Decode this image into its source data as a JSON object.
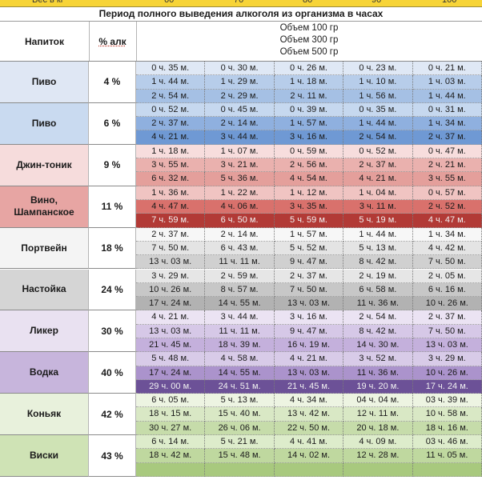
{
  "top_strip_values": [
    "Вес в кг",
    "60",
    "70",
    "80",
    "90",
    "100"
  ],
  "title": "Период полного выведения алкоголя из организма в часах",
  "headers": {
    "drink": "Напиток",
    "alc": "% алк"
  },
  "volumes": [
    "Объем 100 гр",
    "Объем 300 гр",
    "Объем 500 гр"
  ],
  "groups": [
    {
      "drink": "Пиво",
      "alc": "4 %",
      "drink_bg": "#dfe7f4",
      "row_bg": [
        "#dfe8f5",
        "#b7cdea",
        "#a5c0e4"
      ],
      "rows": [
        [
          "0 ч. 35 м.",
          "0 ч. 30 м.",
          "0 ч. 26 м.",
          "0 ч. 23 м.",
          "0 ч. 21 м."
        ],
        [
          "1 ч. 44 м.",
          "1 ч. 29 м.",
          "1 ч. 18 м.",
          "1 ч. 10 м.",
          "1 ч. 03 м."
        ],
        [
          "2 ч. 54 м.",
          "2 ч. 29 м.",
          "2 ч. 11 м.",
          "1 ч. 56 м.",
          "1 ч. 44 м."
        ]
      ]
    },
    {
      "drink": "Пиво",
      "alc": "6 %",
      "drink_bg": "#c9daf0",
      "row_bg": [
        "#c6d8ef",
        "#8fb0df",
        "#6f99d4"
      ],
      "rows": [
        [
          "0 ч. 52 м.",
          "0 ч. 45 м.",
          "0 ч. 39 м.",
          "0 ч. 35 м.",
          "0 ч. 31 м."
        ],
        [
          "2 ч. 37 м.",
          "2 ч. 14 м.",
          "1 ч. 57 м.",
          "1 ч. 44 м.",
          "1 ч. 34 м."
        ],
        [
          "4 ч. 21 м.",
          "3 ч. 44 м.",
          "3 ч. 16 м.",
          "2 ч. 54 м.",
          "2 ч. 37 м."
        ]
      ]
    },
    {
      "drink": "Джин-тоник",
      "alc": "9 %",
      "drink_bg": "#f6dcdc",
      "row_bg": [
        "#f7dddd",
        "#eab1ae",
        "#e49f9b"
      ],
      "rows": [
        [
          "1 ч. 18 м.",
          "1 ч. 07 м.",
          "0 ч. 59 м.",
          "0 ч. 52 м.",
          "0 ч. 47 м."
        ],
        [
          "3 ч. 55 м.",
          "3 ч. 21 м.",
          "2 ч. 56 м.",
          "2 ч. 37 м.",
          "2 ч. 21 м."
        ],
        [
          "6 ч. 32 м.",
          "5 ч. 36 м.",
          "4 ч. 54 м.",
          "4 ч. 21 м.",
          "3 ч. 55 м."
        ]
      ]
    },
    {
      "drink": "Вино, Шампанское",
      "alc": "11 %",
      "drink_bg": "#e7a5a3",
      "row_bg": [
        "#f0c4c2",
        "#d9716c",
        "#b23a36"
      ],
      "dark_rows": [
        2
      ],
      "rows": [
        [
          "1 ч. 36 м.",
          "1 ч. 22 м.",
          "1 ч. 12 м.",
          "1 ч. 04 м.",
          "0 ч. 57 м."
        ],
        [
          "4 ч. 47 м.",
          "4 ч. 06 м.",
          "3 ч. 35 м.",
          "3 ч. 11 м.",
          "2 ч. 52 м."
        ],
        [
          "7 ч. 59 м.",
          "6 ч. 50 м.",
          "5 ч. 59 м.",
          "5 ч. 19 м.",
          "4 ч. 47 м."
        ]
      ]
    },
    {
      "drink": "Портвейн",
      "alc": "18 %",
      "drink_bg": "#f4f4f4",
      "row_bg": [
        "#f7f7f7",
        "#e4e4e4",
        "#d0d0d0"
      ],
      "rows": [
        [
          "2 ч. 37 м.",
          "2 ч. 14 м.",
          "1 ч. 57 м.",
          "1 ч. 44 м.",
          "1 ч. 34 м."
        ],
        [
          "7 ч. 50 м.",
          "6 ч. 43 м.",
          "5 ч. 52 м.",
          "5 ч. 13 м.",
          "4 ч. 42 м."
        ],
        [
          "13 ч. 03 м.",
          "11 ч. 11 м.",
          "9 ч. 47 м.",
          "8 ч. 42 м.",
          "7 ч. 50 м."
        ]
      ]
    },
    {
      "drink": "Настойка",
      "alc": "24 %",
      "drink_bg": "#d5d5d5",
      "row_bg": [
        "#e6e6e6",
        "#c7c7c7",
        "#b2b2b2"
      ],
      "rows": [
        [
          "3 ч. 29 м.",
          "2 ч. 59 м.",
          "2 ч. 37 м.",
          "2 ч. 19 м.",
          "2 ч. 05 м."
        ],
        [
          "10 ч. 26 м.",
          "8 ч. 57 м.",
          "7 ч. 50 м.",
          "6 ч. 58 м.",
          "6 ч. 16 м."
        ],
        [
          "17 ч. 24 м.",
          "14 ч. 55 м.",
          "13 ч. 03 м.",
          "11 ч. 36 м.",
          "10 ч. 26 м."
        ]
      ]
    },
    {
      "drink": "Ликер",
      "alc": "30 %",
      "drink_bg": "#e9e1f1",
      "row_bg": [
        "#ebe3f3",
        "#d6c8e7",
        "#c4b0dc"
      ],
      "rows": [
        [
          "4 ч. 21 м.",
          "3 ч. 44 м.",
          "3 ч. 16 м.",
          "2 ч. 54 м.",
          "2 ч. 37 м."
        ],
        [
          "13 ч. 03 м.",
          "11 ч. 11 м.",
          "9 ч. 47 м.",
          "8 ч. 42 м.",
          "7 ч. 50 м."
        ],
        [
          "21 ч. 45 м.",
          "18 ч. 39 м.",
          "16 ч. 19 м.",
          "14 ч. 30 м.",
          "13 ч. 03 м."
        ]
      ]
    },
    {
      "drink": "Водка",
      "alc": "40 %",
      "drink_bg": "#c7b5dc",
      "row_bg": [
        "#d8cbe8",
        "#ab93cc",
        "#6c5197"
      ],
      "dark_rows": [
        2
      ],
      "rows": [
        [
          "5 ч. 48 м.",
          "4 ч. 58 м.",
          "4 ч. 21 м.",
          "3 ч. 52 м.",
          "3 ч. 29 м."
        ],
        [
          "17 ч. 24 м.",
          "14 ч. 55 м.",
          "13 ч. 03 м.",
          "11 ч. 36 м.",
          "10 ч. 26 м."
        ],
        [
          "29 ч. 00 м.",
          "24 ч. 51 м.",
          "21 ч. 45 м.",
          "19 ч. 20 м.",
          "17 ч. 24 м."
        ]
      ]
    },
    {
      "drink": "Коньяк",
      "alc": "42 %",
      "drink_bg": "#e8f1dc",
      "row_bg": [
        "#edf4e2",
        "#d9e8c5",
        "#c6dcaa"
      ],
      "rows": [
        [
          "6 ч. 05 м.",
          "5 ч. 13 м.",
          "4 ч. 34 м.",
          "04 ч. 04 м.",
          "03 ч. 39 м."
        ],
        [
          "18 ч. 15 м.",
          "15 ч. 40 м.",
          "13 ч. 42 м.",
          "12 ч. 11 м.",
          "10 ч. 58 м."
        ],
        [
          "30 ч. 27 м.",
          "26 ч. 06 м.",
          "22 ч. 50 м.",
          "20 ч. 18 м.",
          "18 ч. 16 м."
        ]
      ]
    },
    {
      "drink": "Виски",
      "alc": "43 %",
      "drink_bg": "#cfe3b5",
      "row_bg": [
        "#ddeccb",
        "#bfd89f",
        "#a8c97e"
      ],
      "rows": [
        [
          "6 ч. 14 м.",
          "5 ч. 21 м.",
          "4 ч. 41 м.",
          "4 ч. 09 м.",
          "03 ч. 46 м."
        ],
        [
          "18 ч. 42 м.",
          "15 ч. 48 м.",
          "14 ч. 02 м.",
          "12 ч. 28 м.",
          "11 ч. 05 м."
        ],
        [
          "",
          "",
          "",
          "",
          ""
        ]
      ]
    }
  ]
}
